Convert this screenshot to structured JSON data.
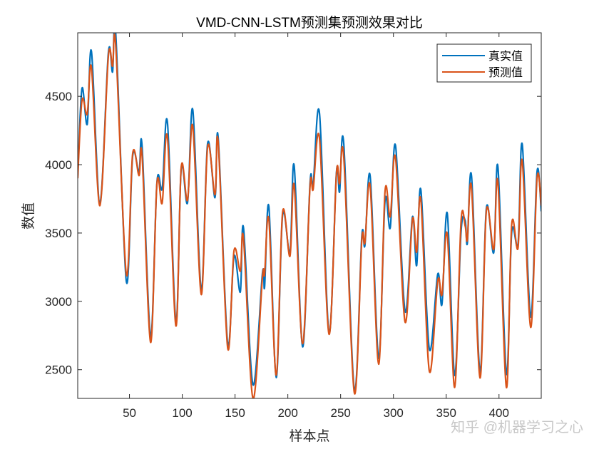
{
  "chart_data": {
    "type": "line",
    "title": "VMD-CNN-LSTM预测集预测效果对比",
    "xlabel": "样本点",
    "ylabel": "数值",
    "xlim": [
      1,
      440
    ],
    "ylim": [
      2290,
      4965
    ],
    "xticks": [
      50,
      100,
      150,
      200,
      250,
      300,
      350,
      400
    ],
    "yticks": [
      2500,
      3000,
      3500,
      4000,
      4500
    ],
    "grid": false,
    "legend_position": "top-right",
    "series": [
      {
        "name": "真实值",
        "color": "#0072BD",
        "x": [
          1,
          5,
          10,
          14,
          22,
          30,
          34,
          37,
          47,
          53,
          59,
          62,
          70,
          76,
          81,
          86,
          94,
          99,
          105,
          110,
          118,
          124,
          131,
          134,
          143,
          149,
          155,
          158,
          167,
          176,
          178,
          182,
          189,
          195,
          202,
          206,
          214,
          221,
          224,
          230,
          239,
          246,
          249,
          253,
          263,
          270,
          273,
          278,
          286,
          292,
          297,
          302,
          311,
          318,
          322,
          326,
          334,
          342,
          346,
          351,
          358,
          364,
          368,
          370,
          374,
          382,
          388,
          395,
          399,
          407,
          412,
          418,
          422,
          430,
          436,
          440
        ],
        "values": [
          3920,
          4557,
          4296,
          4829,
          3722,
          4818,
          4678,
          4960,
          3147,
          4061,
          3946,
          4130,
          2740,
          3868,
          3826,
          4307,
          2850,
          3973,
          3722,
          4401,
          3080,
          4155,
          3758,
          4202,
          2693,
          3330,
          3069,
          3539,
          2390,
          3210,
          3106,
          3696,
          2443,
          3628,
          3356,
          3993,
          2667,
          3863,
          3852,
          4375,
          2771,
          3941,
          3800,
          4150,
          2354,
          3471,
          3409,
          3915,
          2583,
          3732,
          3539,
          4140,
          2928,
          3617,
          3262,
          3816,
          2651,
          3200,
          2980,
          3644,
          2458,
          3503,
          3591,
          3424,
          3915,
          2484,
          3680,
          3356,
          3983,
          2469,
          3503,
          3419,
          4150,
          2886,
          3946,
          3659
        ]
      },
      {
        "name": "预测值",
        "color": "#D95319",
        "x": [
          1,
          5,
          10,
          14,
          22,
          30,
          34,
          37,
          47,
          53,
          59,
          62,
          70,
          76,
          81,
          86,
          94,
          99,
          105,
          110,
          118,
          124,
          131,
          134,
          143,
          149,
          155,
          158,
          167,
          176,
          178,
          182,
          189,
          195,
          202,
          206,
          214,
          221,
          224,
          230,
          239,
          246,
          249,
          253,
          263,
          270,
          273,
          278,
          286,
          292,
          297,
          302,
          311,
          318,
          322,
          326,
          334,
          342,
          346,
          351,
          358,
          364,
          368,
          370,
          374,
          382,
          388,
          395,
          399,
          407,
          412,
          418,
          422,
          430,
          436,
          440
        ],
        "values": [
          3900,
          4470,
          4370,
          4710,
          3700,
          4790,
          4720,
          4870,
          3200,
          4080,
          3920,
          4060,
          2700,
          3860,
          3720,
          4200,
          2820,
          3980,
          3740,
          4280,
          3050,
          4130,
          3780,
          4170,
          2660,
          3370,
          3220,
          3460,
          2290,
          3180,
          3200,
          3600,
          2460,
          3650,
          3330,
          3850,
          2690,
          3840,
          3820,
          4190,
          2760,
          3930,
          3860,
          4050,
          2330,
          3440,
          3430,
          3840,
          2540,
          3800,
          3620,
          4050,
          2850,
          3600,
          3360,
          3740,
          2490,
          3150,
          3050,
          3490,
          2370,
          3580,
          3550,
          3450,
          3830,
          2440,
          3660,
          3380,
          3870,
          2370,
          3560,
          3390,
          4030,
          2810,
          3900,
          3700
        ]
      }
    ]
  },
  "watermark": "知乎 @机器学习之心"
}
